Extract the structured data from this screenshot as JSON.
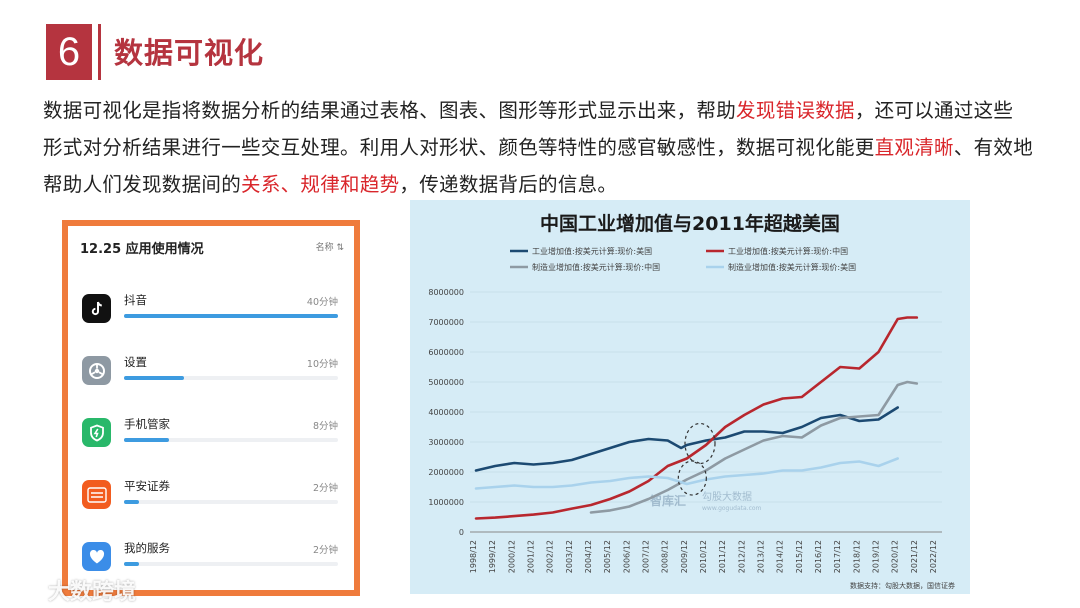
{
  "section": {
    "number": "6",
    "title": "数据可视化"
  },
  "paragraph": {
    "p1": "数据可视化是指将数据分析的结果通过表格、图表、图形等形式显示出来，帮助",
    "h1": "发现错误数据",
    "p2": "，还可以通过这些形式对分析结果进行一些交互处理。利用人对形状、颜色等特性的感官敏感性，数据可视化能更",
    "h2": "直观清晰",
    "p3": "、有效地帮助人们发现数据间的",
    "h3": "关系、规律和趋势",
    "p4": "，传递数据背后的信息。"
  },
  "highlight_color": "#d9262b",
  "phone_panel": {
    "title": "12.25 应用使用情况",
    "sort_label": "名称 ⇅",
    "apps": [
      {
        "name": "抖音",
        "time": "40分钟",
        "icon": "tiktok-icon",
        "usage": 1.0,
        "color": "#111111"
      },
      {
        "name": "设置",
        "time": "10分钟",
        "icon": "settings-icon",
        "usage": 0.28,
        "color": "#8e99a3"
      },
      {
        "name": "手机管家",
        "time": "8分钟",
        "icon": "phone-manager-icon",
        "usage": 0.21,
        "color": "#29b86a"
      },
      {
        "name": "平安证券",
        "time": "2分钟",
        "icon": "pingan-securities-icon",
        "usage": 0.07,
        "color": "#f25c1f"
      },
      {
        "name": "我的服务",
        "time": "2分钟",
        "icon": "my-service-icon",
        "usage": 0.07,
        "color": "#3b8de8"
      }
    ]
  },
  "chart_data": {
    "type": "line",
    "title": "中国工业增加值与2011年超越美国",
    "xlabel": "",
    "ylabel": "",
    "ylim": [
      0,
      8000000
    ],
    "yticks": [
      "0",
      "1000000",
      "2000000",
      "3000000",
      "4000000",
      "5000000",
      "6000000",
      "7000000",
      "8000000"
    ],
    "categories": [
      "1998/12",
      "1999/12",
      "2000/12",
      "2001/12",
      "2002/12",
      "2003/12",
      "2004/12",
      "2005/12",
      "2006/12",
      "2007/12",
      "2008/12",
      "2009/12",
      "2010/12",
      "2011/12",
      "2012/12",
      "2013/12",
      "2014/12",
      "2015/12",
      "2016/12",
      "2017/12",
      "2018/12",
      "2019/12",
      "2020/12",
      "2021/12",
      "2022/12"
    ],
    "grid": true,
    "legend": "top",
    "source": "数据支持：勾股大数据，国信证券",
    "watermarks": [
      "智库汇",
      "勾股大数据",
      "www.gogudata.com"
    ],
    "series": [
      {
        "name": "工业增加值:按美元计算:现价:美国",
        "color": "#1c4a72",
        "x": [
          0,
          1,
          2,
          3,
          4,
          5,
          6,
          7,
          8,
          9,
          10,
          10.7,
          11,
          12,
          13,
          14,
          15,
          16,
          17,
          18,
          19,
          20,
          21,
          22
        ],
        "values": [
          2050000,
          2200000,
          2300000,
          2250000,
          2300000,
          2400000,
          2600000,
          2800000,
          3000000,
          3100000,
          3050000,
          2800000,
          2900000,
          3050000,
          3150000,
          3350000,
          3350000,
          3300000,
          3500000,
          3800000,
          3900000,
          3700000,
          3750000,
          4150000
        ]
      },
      {
        "name": "工业增加值:按美元计算:现价:中国",
        "color": "#b8272e",
        "x": [
          0,
          1,
          2,
          3,
          4,
          5,
          6,
          7,
          8,
          9,
          10,
          11,
          12,
          13,
          14,
          15,
          16,
          17,
          18,
          19,
          20,
          21,
          22,
          22.5,
          23
        ],
        "values": [
          450000,
          480000,
          530000,
          580000,
          650000,
          780000,
          900000,
          1100000,
          1350000,
          1700000,
          2200000,
          2450000,
          2900000,
          3500000,
          3900000,
          4250000,
          4450000,
          4500000,
          5000000,
          5500000,
          5450000,
          6000000,
          7100000,
          7150000,
          7150000
        ]
      },
      {
        "name": "制造业增加值:按美元计算:现价:中国",
        "color": "#8e9aa3",
        "x": [
          6,
          7,
          8,
          9,
          10,
          11,
          12,
          13,
          14,
          15,
          16,
          17,
          18,
          19,
          20,
          21,
          22,
          22.5,
          23
        ],
        "values": [
          650000,
          720000,
          850000,
          1100000,
          1400000,
          1750000,
          2050000,
          2450000,
          2750000,
          3050000,
          3200000,
          3150000,
          3550000,
          3800000,
          3850000,
          3900000,
          4900000,
          5000000,
          4950000
        ]
      },
      {
        "name": "制造业增加值:按美元计算:现价:美国",
        "color": "#a9d2ec",
        "x": [
          0,
          1,
          2,
          3,
          4,
          5,
          6,
          7,
          8,
          9,
          10,
          11,
          12,
          13,
          14,
          15,
          16,
          17,
          18,
          19,
          20,
          21,
          22
        ],
        "values": [
          1450000,
          1500000,
          1550000,
          1500000,
          1500000,
          1550000,
          1650000,
          1700000,
          1800000,
          1850000,
          1800000,
          1600000,
          1750000,
          1850000,
          1900000,
          1950000,
          2050000,
          2050000,
          2150000,
          2300000,
          2350000,
          2200000,
          2450000
        ]
      }
    ]
  },
  "watermark": {
    "text": "大数跨境"
  }
}
